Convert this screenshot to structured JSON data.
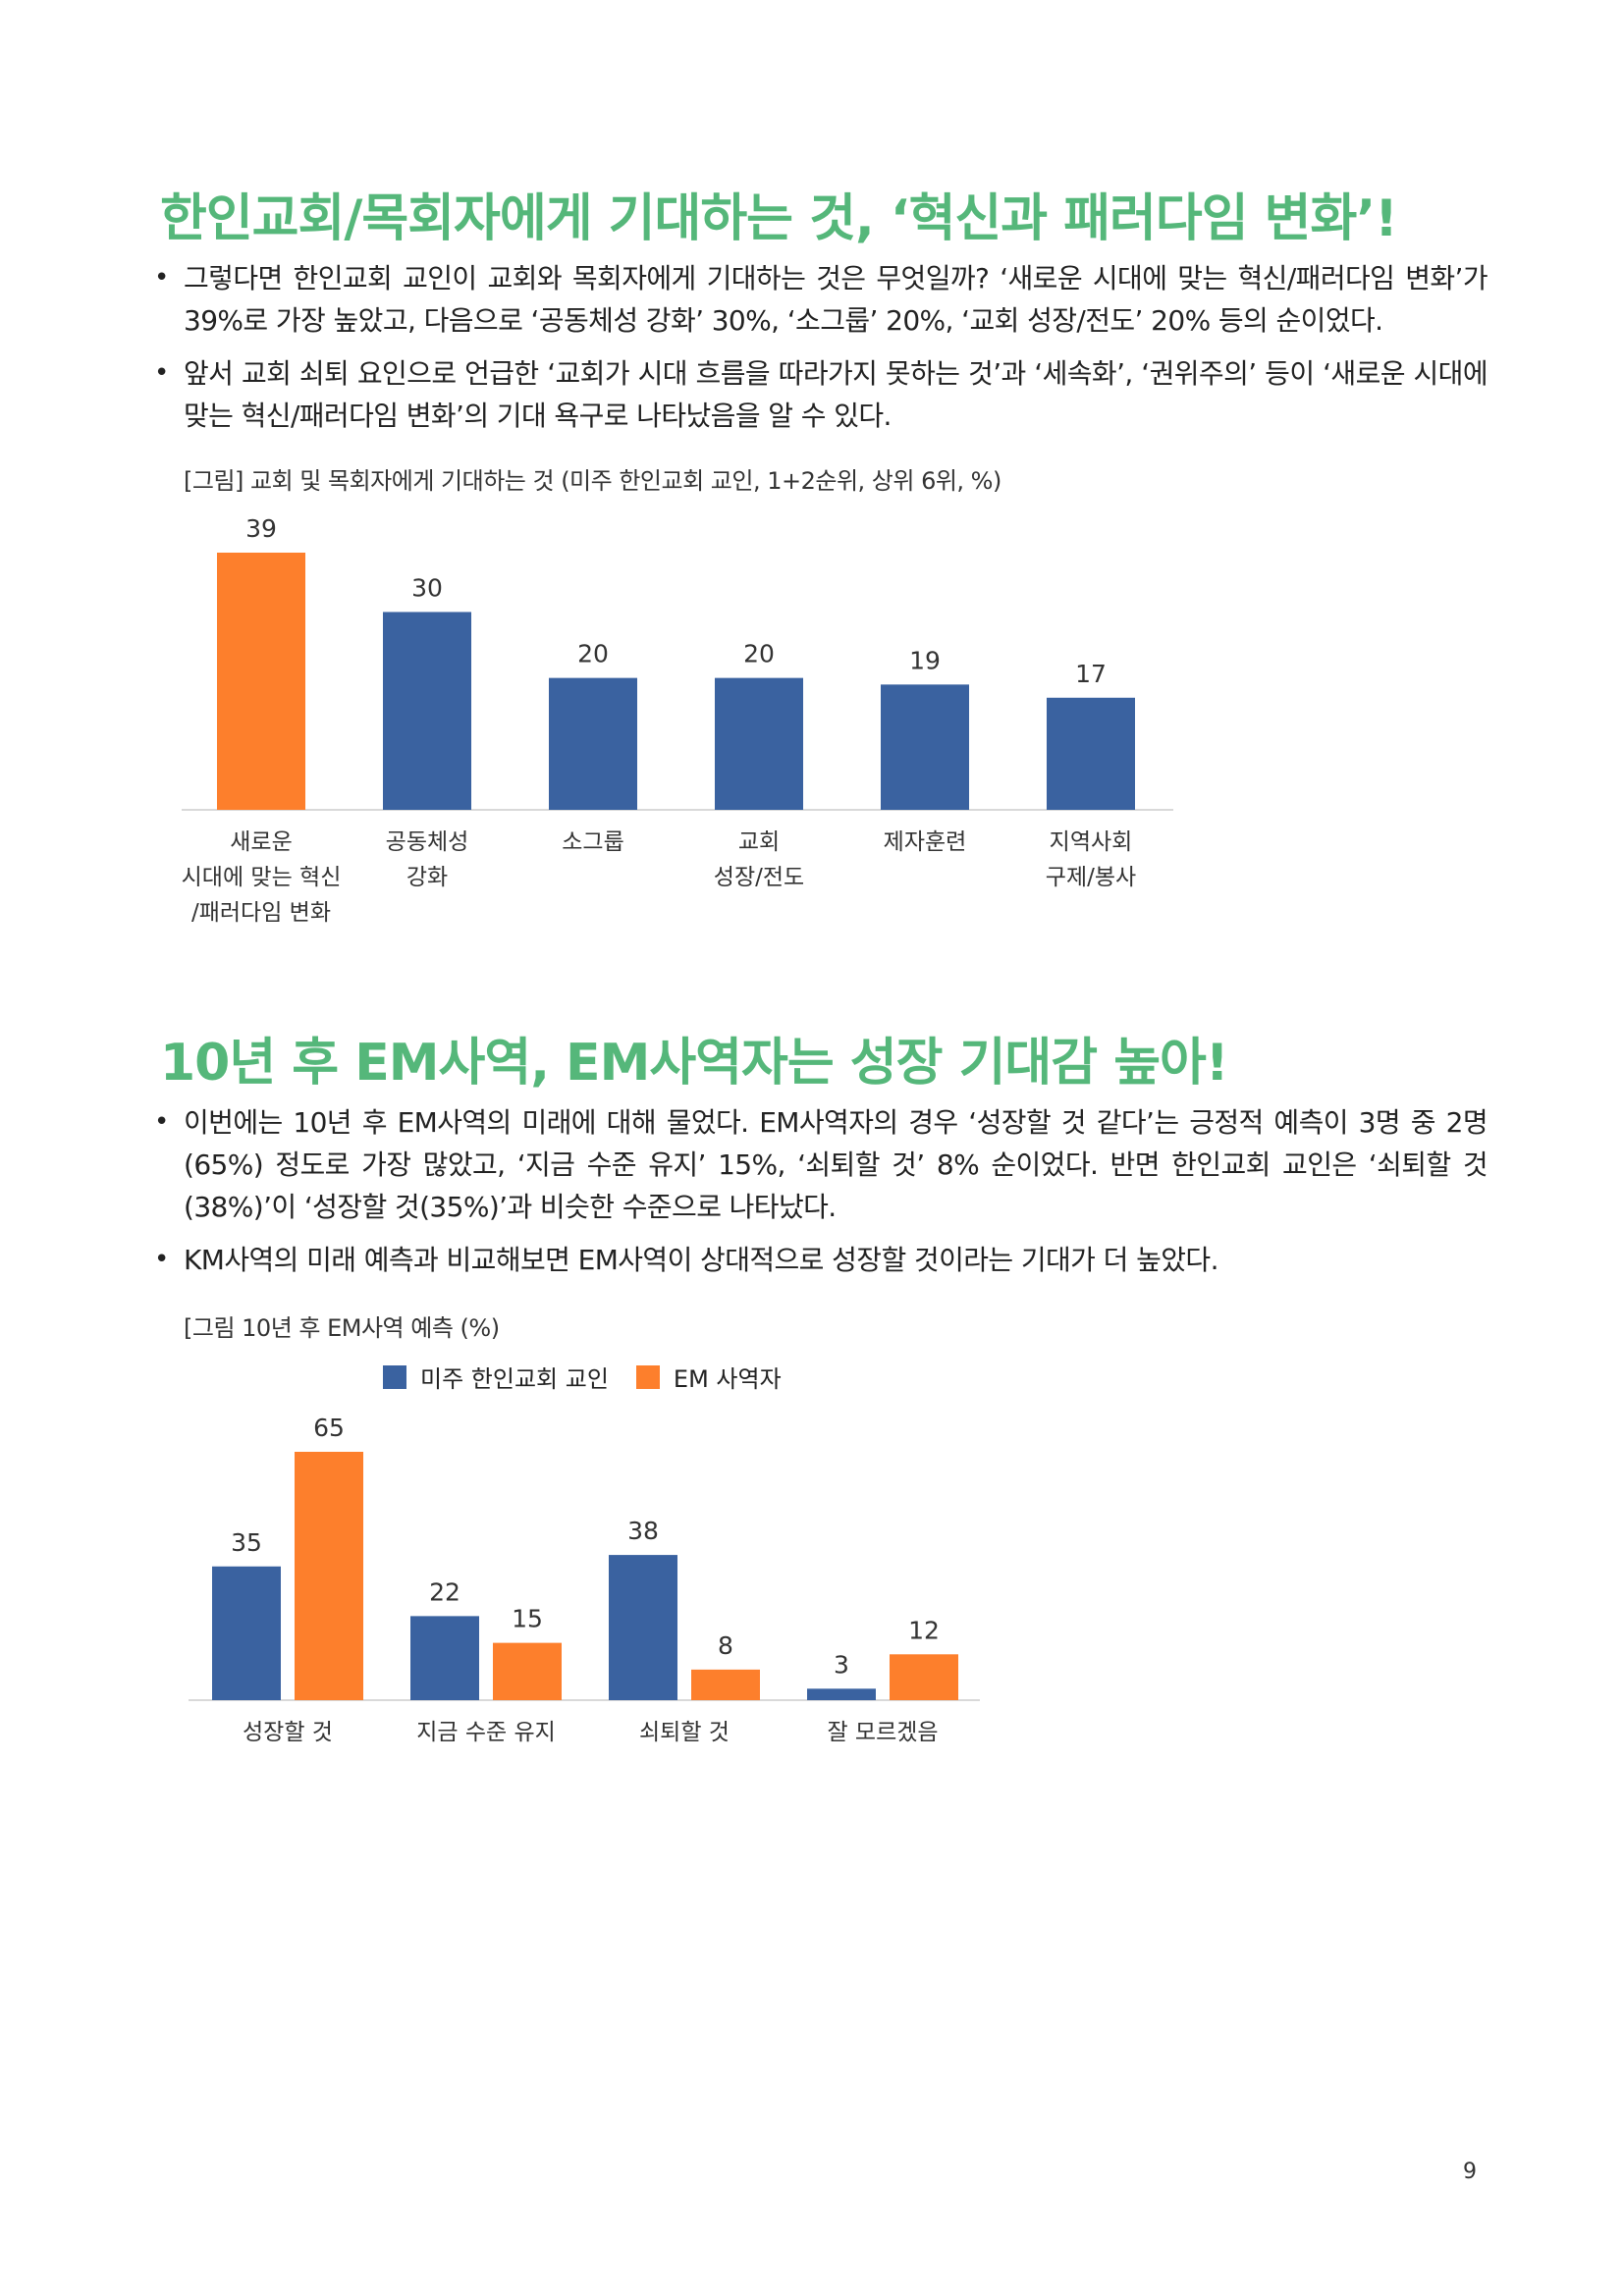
{
  "section1": {
    "heading": "한인교회/목회자에게 기대하는 것, ‘혁신과 패러다임 변화’!",
    "bullets": [
      "그렇다면 한인교회 교인이 교회와 목회자에게 기대하는 것은 무엇일까? ‘새로운 시대에 맞는 혁신/패러다임 변화’가 39%로 가장 높았고, 다음으로 ‘공동체성 강화’ 30%, ‘소그룹’ 20%, ‘교회 성장/전도’ 20% 등의 순이었다.",
      "앞서 교회 쇠퇴 요인으로 언급한 ‘교회가 시대 흐름을 따라가지 못하는 것’과 ‘세속화’, ‘권위주의’ 등이 ‘새로운 시대에 맞는 혁신/패러다임 변화’의 기대 욕구로 나타났음을 알 수 있다."
    ],
    "caption": "[그림] 교회 및 목회자에게 기대하는 것 (미주 한인교회 교인, 1+2순위, 상위 6위, %)"
  },
  "section2": {
    "heading": "10년 후 EM사역, EM사역자는 성장 기대감 높아!",
    "bullets": [
      "이번에는 10년 후 EM사역의 미래에 대해 물었다. EM사역자의 경우 ‘성장할 것 같다’는 긍정적 예측이 3명 중 2명(65%) 정도로 가장 많았고, ‘지금 수준 유지’ 15%, ‘쇠퇴할 것’ 8% 순이었다. 반면 한인교회 교인은 ‘쇠퇴할 것(38%)’이 ‘성장할 것(35%)’과 비슷한 수준으로 나타났다.",
      "KM사역의 미래 예측과 비교해보면 EM사역이 상대적으로 성장할 것이라는 기대가 더 높았다."
    ],
    "caption": "[그림 10년 후 EM사역 예측 (%)"
  },
  "chart_data": [
    {
      "type": "bar",
      "categories": [
        [
          "새로운",
          "시대에 맞는 혁신",
          "/패러다임 변화"
        ],
        [
          "공동체성",
          "강화"
        ],
        [
          "소그룹"
        ],
        [
          "교회",
          "성장/전도"
        ],
        [
          "제자훈련"
        ],
        [
          "지역사회",
          "구제/봉사"
        ]
      ],
      "values": [
        39,
        30,
        20,
        20,
        19,
        17
      ],
      "colors": [
        "#fd7f2c",
        "#3a62a0",
        "#3a62a0",
        "#3a62a0",
        "#3a62a0",
        "#3a62a0"
      ],
      "ylim": [
        0,
        39
      ],
      "grid": false,
      "legend": "none"
    },
    {
      "type": "bar",
      "categories": [
        "성장할 것",
        "지금 수준 유지",
        "쇠퇴할 것",
        "잘 모르겠음"
      ],
      "series": [
        {
          "name": "미주 한인교회 교인",
          "values": [
            35,
            22,
            38,
            3
          ],
          "color": "#3a62a0"
        },
        {
          "name": "EM 사역자",
          "values": [
            65,
            15,
            8,
            12
          ],
          "color": "#fd7f2c"
        }
      ],
      "ylim": [
        0,
        65
      ],
      "grid": false,
      "legend": "top"
    }
  ],
  "page_number": "9"
}
